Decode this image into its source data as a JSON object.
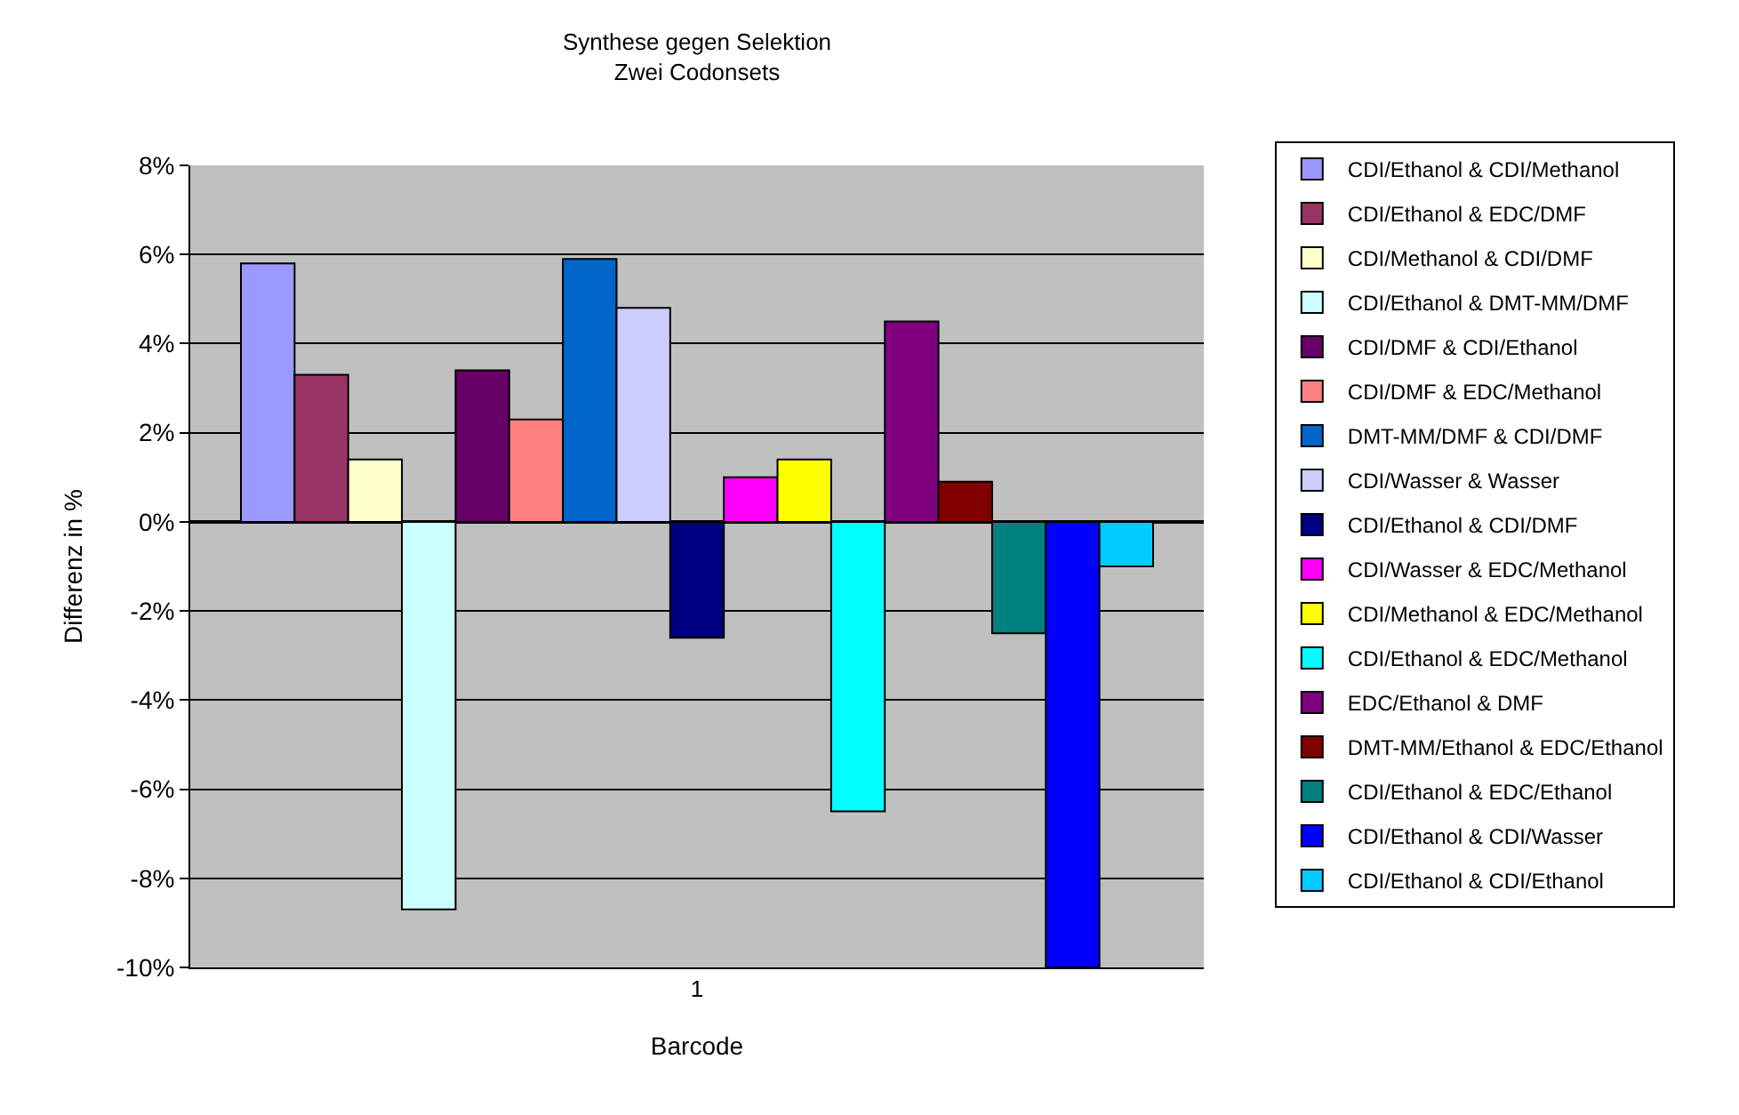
{
  "chart_data": {
    "type": "bar",
    "title": "Synthese gegen Selektion",
    "subtitle": "Zwei Codonsets",
    "xlabel": "Barcode",
    "ylabel": "Differenz in %",
    "categories": [
      "1"
    ],
    "series": [
      {
        "name": "CDI/Ethanol & CDI/Methanol",
        "color": "#9999ff",
        "values": [
          5.8
        ]
      },
      {
        "name": "CDI/Ethanol & EDC/DMF",
        "color": "#993366",
        "values": [
          3.3
        ]
      },
      {
        "name": "CDI/Methanol & CDI/DMF",
        "color": "#ffffcc",
        "values": [
          1.4
        ]
      },
      {
        "name": "CDI/Ethanol & DMT-MM/DMF",
        "color": "#ccffff",
        "values": [
          -8.7
        ]
      },
      {
        "name": "CDI/DMF & CDI/Ethanol",
        "color": "#660066",
        "values": [
          3.4
        ]
      },
      {
        "name": "CDI/DMF & EDC/Methanol",
        "color": "#ff8080",
        "values": [
          2.3
        ]
      },
      {
        "name": "DMT-MM/DMF & CDI/DMF",
        "color": "#0066cc",
        "values": [
          5.9
        ]
      },
      {
        "name": "CDI/Wasser & Wasser",
        "color": "#ccccff",
        "values": [
          4.8
        ]
      },
      {
        "name": "CDI/Ethanol & CDI/DMF",
        "color": "#000080",
        "values": [
          -2.6
        ]
      },
      {
        "name": "CDI/Wasser & EDC/Methanol",
        "color": "#ff00ff",
        "values": [
          1.0
        ]
      },
      {
        "name": "CDI/Methanol & EDC/Methanol",
        "color": "#ffff00",
        "values": [
          1.4
        ]
      },
      {
        "name": "CDI/Ethanol & EDC/Methanol",
        "color": "#00ffff",
        "values": [
          -6.5
        ]
      },
      {
        "name": "EDC/Ethanol & DMF",
        "color": "#800080",
        "values": [
          4.5
        ]
      },
      {
        "name": "DMT-MM/Ethanol & EDC/Ethanol",
        "color": "#800000",
        "values": [
          0.9
        ]
      },
      {
        "name": "CDI/Ethanol & EDC/Ethanol",
        "color": "#008080",
        "values": [
          -2.5
        ]
      },
      {
        "name": "CDI/Ethanol & CDI/Wasser",
        "color": "#0000ff",
        "values": [
          -10
        ]
      },
      {
        "name": "CDI/Ethanol & CDI/Ethanol",
        "color": "#00ccff",
        "values": [
          -1.0
        ]
      }
    ],
    "ylim": [
      -10,
      8
    ],
    "yticks": [
      {
        "value": -10,
        "label": "-10%"
      },
      {
        "value": -8,
        "label": "-8%"
      },
      {
        "value": -6,
        "label": "-6%"
      },
      {
        "value": -4,
        "label": "-4%"
      },
      {
        "value": -2,
        "label": "-2%"
      },
      {
        "value": 0,
        "label": "0%"
      },
      {
        "value": 2,
        "label": "2%"
      },
      {
        "value": 4,
        "label": "4%"
      },
      {
        "value": 6,
        "label": "6%"
      },
      {
        "value": 8,
        "label": "8%"
      }
    ],
    "grid": "y",
    "legend": "right"
  }
}
